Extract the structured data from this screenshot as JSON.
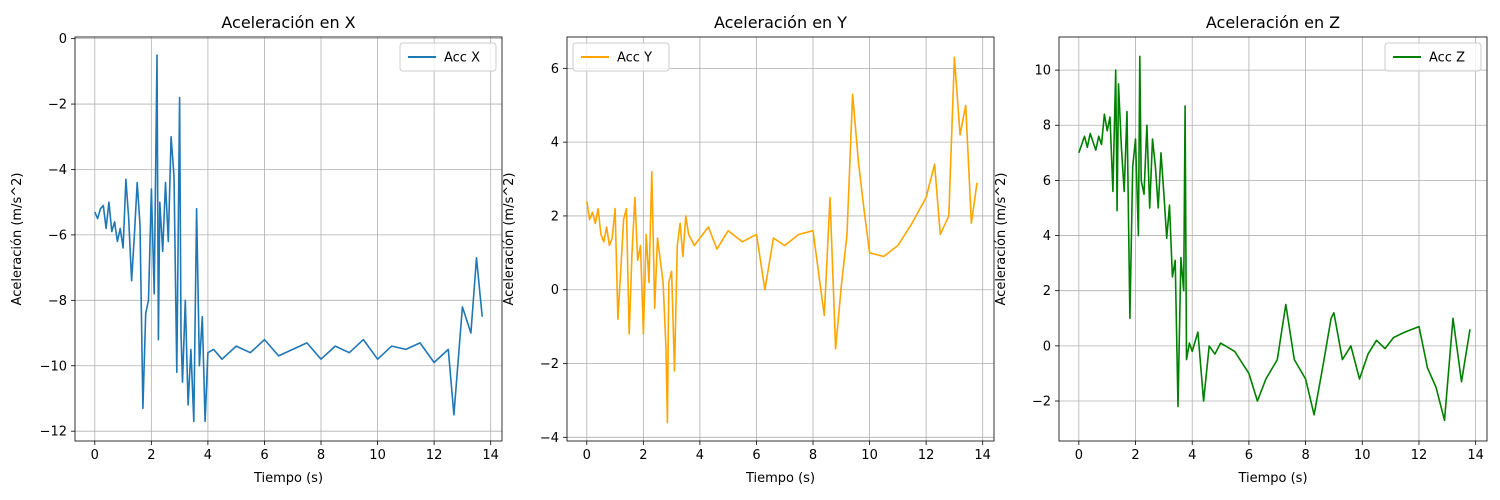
{
  "chart_data": [
    {
      "type": "line",
      "title": "Aceleración en X",
      "xlabel": "Tiempo (s)",
      "ylabel": "Aceleración (m/s^2)",
      "xlim": [
        -0.7,
        14.4
      ],
      "ylim": [
        -12.3,
        0.05
      ],
      "xticks": [
        0,
        2,
        4,
        6,
        8,
        10,
        12,
        14
      ],
      "xtick_labels": [
        "0",
        "2",
        "4",
        "6",
        "8",
        "10",
        "12",
        "14"
      ],
      "yticks": [
        -12,
        -10,
        -8,
        -6,
        -4,
        -2,
        0
      ],
      "ytick_labels": [
        "−12",
        "−10",
        "−8",
        "−6",
        "−4",
        "−2",
        "0"
      ],
      "grid": true,
      "legend_position": "top-right",
      "series": [
        {
          "name": "Acc X",
          "color": "#1f77b4",
          "x": [
            0.0,
            0.1,
            0.2,
            0.3,
            0.4,
            0.5,
            0.6,
            0.7,
            0.8,
            0.9,
            1.0,
            1.1,
            1.2,
            1.3,
            1.4,
            1.5,
            1.6,
            1.7,
            1.8,
            1.9,
            2.0,
            2.1,
            2.2,
            2.25,
            2.3,
            2.4,
            2.5,
            2.6,
            2.7,
            2.8,
            2.9,
            3.0,
            3.05,
            3.1,
            3.2,
            3.3,
            3.4,
            3.5,
            3.6,
            3.7,
            3.8,
            3.9,
            4.0,
            4.2,
            4.5,
            5.0,
            5.5,
            6.0,
            6.5,
            7.0,
            7.5,
            8.0,
            8.5,
            9.0,
            9.5,
            10.0,
            10.5,
            11.0,
            11.5,
            12.0,
            12.5,
            12.7,
            13.0,
            13.3,
            13.5,
            13.7
          ],
          "y": [
            -5.3,
            -5.5,
            -5.2,
            -5.1,
            -5.8,
            -5.0,
            -5.9,
            -5.6,
            -6.2,
            -5.8,
            -6.4,
            -4.3,
            -5.5,
            -7.4,
            -6.0,
            -4.4,
            -5.7,
            -11.3,
            -8.4,
            -8.0,
            -4.6,
            -7.8,
            -0.5,
            -9.2,
            -5.0,
            -6.5,
            -4.4,
            -6.2,
            -3.0,
            -4.2,
            -10.2,
            -1.8,
            -9.0,
            -10.5,
            -8.0,
            -11.2,
            -9.5,
            -11.7,
            -5.2,
            -10.0,
            -8.5,
            -11.7,
            -9.6,
            -9.5,
            -9.8,
            -9.4,
            -9.6,
            -9.2,
            -9.7,
            -9.5,
            -9.3,
            -9.8,
            -9.4,
            -9.6,
            -9.2,
            -9.8,
            -9.4,
            -9.5,
            -9.3,
            -9.9,
            -9.5,
            -11.5,
            -8.2,
            -9.0,
            -6.7,
            -8.5
          ]
        }
      ]
    },
    {
      "type": "line",
      "title": "Aceleración en Y",
      "xlabel": "Tiempo (s)",
      "ylabel": "Aceleración (m/s^2)",
      "xlim": [
        -0.7,
        14.4
      ],
      "ylim": [
        -4.1,
        6.85
      ],
      "xticks": [
        0,
        2,
        4,
        6,
        8,
        10,
        12,
        14
      ],
      "xtick_labels": [
        "0",
        "2",
        "4",
        "6",
        "8",
        "10",
        "12",
        "14"
      ],
      "yticks": [
        -4,
        -2,
        0,
        2,
        4,
        6
      ],
      "ytick_labels": [
        "−4",
        "−2",
        "0",
        "2",
        "4",
        "6"
      ],
      "grid": true,
      "legend_position": "top-left",
      "series": [
        {
          "name": "Acc Y",
          "color": "#ffa500",
          "x": [
            0.0,
            0.1,
            0.2,
            0.3,
            0.4,
            0.5,
            0.6,
            0.7,
            0.8,
            0.9,
            1.0,
            1.1,
            1.2,
            1.3,
            1.4,
            1.5,
            1.6,
            1.7,
            1.8,
            1.9,
            2.0,
            2.1,
            2.2,
            2.3,
            2.4,
            2.5,
            2.6,
            2.7,
            2.8,
            2.85,
            2.9,
            3.0,
            3.1,
            3.2,
            3.3,
            3.4,
            3.5,
            3.6,
            3.8,
            4.0,
            4.3,
            4.6,
            5.0,
            5.5,
            6.0,
            6.3,
            6.6,
            7.0,
            7.5,
            8.0,
            8.4,
            8.6,
            8.8,
            9.0,
            9.2,
            9.4,
            9.6,
            9.8,
            10.0,
            10.5,
            11.0,
            11.5,
            12.0,
            12.3,
            12.5,
            12.8,
            13.0,
            13.2,
            13.4,
            13.6,
            13.8
          ],
          "y": [
            2.4,
            1.9,
            2.1,
            1.8,
            2.2,
            1.5,
            1.3,
            1.7,
            1.2,
            1.4,
            2.2,
            -0.8,
            0.5,
            1.9,
            2.2,
            -1.2,
            1.0,
            2.5,
            0.8,
            1.2,
            -1.2,
            1.5,
            0.2,
            3.2,
            -0.5,
            1.4,
            0.8,
            0.2,
            -1.6,
            -3.6,
            0.2,
            0.5,
            -2.2,
            1.2,
            1.8,
            0.9,
            2.0,
            1.5,
            1.2,
            1.4,
            1.7,
            1.1,
            1.6,
            1.3,
            1.5,
            0.0,
            1.4,
            1.2,
            1.5,
            1.6,
            -0.7,
            2.5,
            -1.6,
            0.1,
            1.5,
            5.3,
            3.5,
            2.2,
            1.0,
            0.9,
            1.2,
            1.8,
            2.5,
            3.4,
            1.5,
            2.0,
            6.3,
            4.2,
            5.0,
            1.8,
            2.9
          ]
        }
      ]
    },
    {
      "type": "line",
      "title": "Aceleración en Z",
      "xlabel": "Tiempo (s)",
      "ylabel": "Aceleración (m/s^2)",
      "xlim": [
        -0.7,
        14.4
      ],
      "ylim": [
        -3.45,
        11.2
      ],
      "xticks": [
        0,
        2,
        4,
        6,
        8,
        10,
        12,
        14
      ],
      "xtick_labels": [
        "0",
        "2",
        "4",
        "6",
        "8",
        "10",
        "12",
        "14"
      ],
      "yticks": [
        -2,
        0,
        2,
        4,
        6,
        8,
        10
      ],
      "ytick_labels": [
        "−2",
        "0",
        "2",
        "4",
        "6",
        "8",
        "10"
      ],
      "grid": true,
      "legend_position": "top-right",
      "series": [
        {
          "name": "Acc Z",
          "color": "#008000",
          "x": [
            0.0,
            0.1,
            0.2,
            0.3,
            0.4,
            0.5,
            0.6,
            0.7,
            0.8,
            0.9,
            1.0,
            1.1,
            1.2,
            1.3,
            1.35,
            1.4,
            1.5,
            1.6,
            1.7,
            1.8,
            1.9,
            2.0,
            2.1,
            2.15,
            2.2,
            2.3,
            2.4,
            2.5,
            2.6,
            2.7,
            2.8,
            2.9,
            3.0,
            3.1,
            3.2,
            3.3,
            3.4,
            3.5,
            3.6,
            3.7,
            3.75,
            3.8,
            3.9,
            4.0,
            4.2,
            4.4,
            4.6,
            4.8,
            5.0,
            5.5,
            6.0,
            6.3,
            6.6,
            7.0,
            7.3,
            7.6,
            8.0,
            8.3,
            8.6,
            8.9,
            9.0,
            9.3,
            9.6,
            9.9,
            10.2,
            10.5,
            10.8,
            11.1,
            11.5,
            12.0,
            12.3,
            12.6,
            12.9,
            13.2,
            13.5,
            13.8
          ],
          "y": [
            7.0,
            7.3,
            7.6,
            7.2,
            7.7,
            7.4,
            7.1,
            7.6,
            7.3,
            8.4,
            7.8,
            8.3,
            5.6,
            10.0,
            4.9,
            9.5,
            7.2,
            5.6,
            8.5,
            1.0,
            6.5,
            7.5,
            4.0,
            10.5,
            6.0,
            5.5,
            8.0,
            5.0,
            7.5,
            6.5,
            5.0,
            7.0,
            5.5,
            3.9,
            5.1,
            2.5,
            3.1,
            -2.2,
            3.2,
            2.0,
            8.7,
            -0.5,
            0.1,
            -0.2,
            0.5,
            -2.0,
            0.0,
            -0.3,
            0.1,
            -0.2,
            -1.0,
            -2.0,
            -1.2,
            -0.5,
            1.5,
            -0.5,
            -1.2,
            -2.5,
            -0.8,
            1.0,
            1.2,
            -0.5,
            0.0,
            -1.2,
            -0.3,
            0.2,
            -0.1,
            0.3,
            0.5,
            0.7,
            -0.8,
            -1.5,
            -2.7,
            1.0,
            -1.3,
            0.6
          ]
        }
      ]
    }
  ]
}
